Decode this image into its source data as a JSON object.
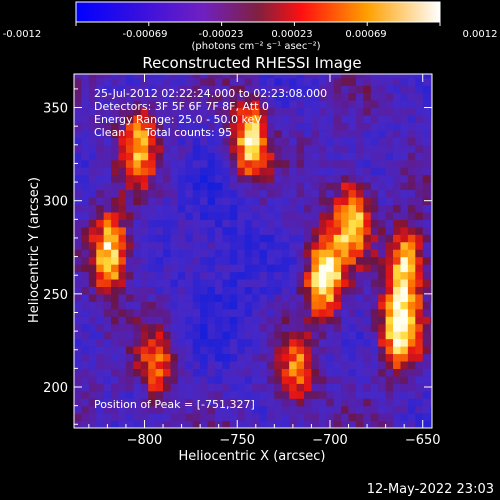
{
  "colorbar": {
    "tick_labels": [
      "-0.0012",
      "-0.00069",
      "-0.00023",
      "0.00023",
      "0.00069",
      "0.0012"
    ],
    "units_label": "(photons cm⁻² s⁻¹ asec⁻²)"
  },
  "chart_data": {
    "type": "heatmap",
    "title": "Reconstructed RHESSI Image",
    "xlabel": "Heliocentric X (arcsec)",
    "ylabel": "Heliocentric Y (arcsec)",
    "xlim": [
      -838,
      -645
    ],
    "ylim": [
      178,
      368
    ],
    "x_ticks": [
      -800,
      -750,
      -700,
      -650
    ],
    "y_ticks": [
      200,
      250,
      300,
      350
    ],
    "x_tick_labels": [
      "−800",
      "−750",
      "−700",
      "−650"
    ],
    "y_tick_labels": [
      "200",
      "250",
      "300",
      "350"
    ],
    "colorbar_range": [
      -0.0012,
      0.0012
    ],
    "colormap": "blue-purple-red-yellow-white",
    "annotations": {
      "time_range": "25-Jul-2012 02:22:24.000 to 02:23:08.000",
      "detectors": "Detectors: 3F 5F 6F 7F 8F, Att 0",
      "energy_range": "Energy Range: 25.0 - 50.0 keV",
      "clean": "Clean",
      "total_counts": "Total counts: 95",
      "peak": "Position of Peak = [-751,327]"
    },
    "peak_position": [
      -751,
      327
    ],
    "bright_regions": [
      {
        "x": -820,
        "y": 270,
        "level": 0.9
      },
      {
        "x": -805,
        "y": 330,
        "level": 0.7
      },
      {
        "x": -745,
        "y": 330,
        "level": 0.95
      },
      {
        "x": -705,
        "y": 258,
        "level": 1.0
      },
      {
        "x": -690,
        "y": 290,
        "level": 0.8
      },
      {
        "x": -665,
        "y": 230,
        "level": 0.95
      },
      {
        "x": -660,
        "y": 265,
        "level": 0.8
      },
      {
        "x": -720,
        "y": 205,
        "level": 0.6
      },
      {
        "x": -795,
        "y": 210,
        "level": 0.55
      }
    ]
  },
  "footer": {
    "date_stamp": "12-May-2022 23:03"
  }
}
